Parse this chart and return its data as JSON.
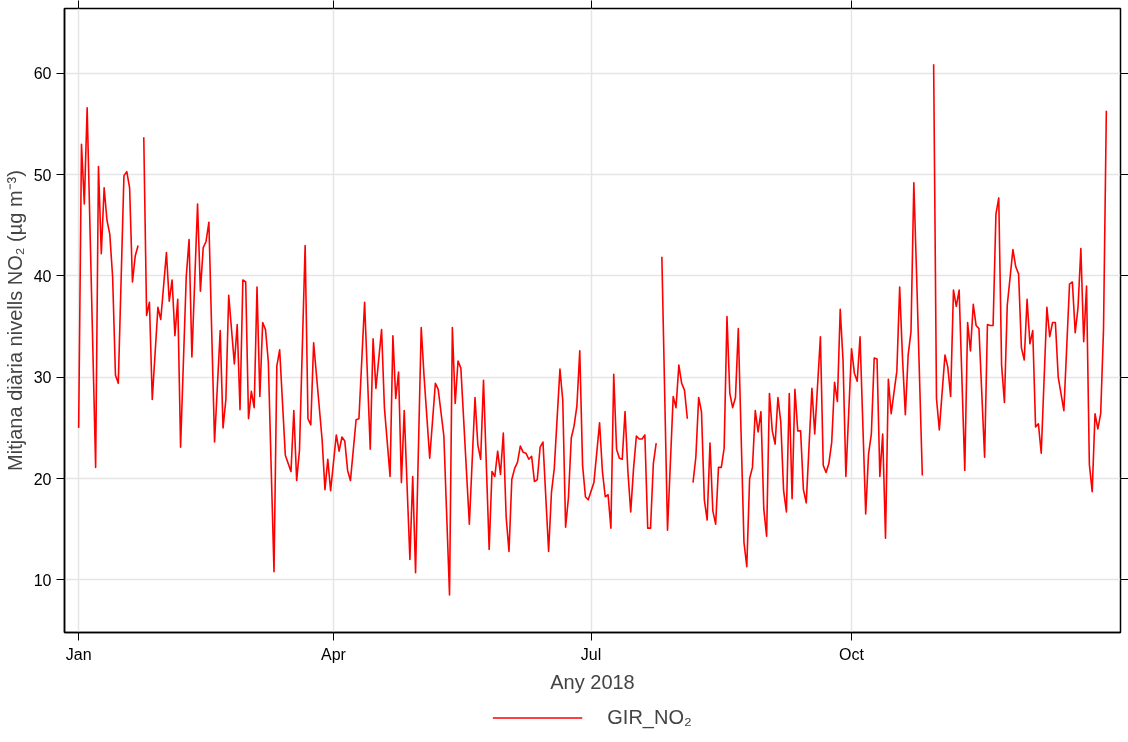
{
  "chart_data": {
    "type": "line",
    "xlabel": "Any 2018",
    "ylabel": "Mitjana diària nivells NO₂ (µg m⁻³)",
    "xlim": [
      "2017-12-27",
      "2019-01-04"
    ],
    "xticks": [
      {
        "value": "2018-01-01",
        "label": "Jan"
      },
      {
        "value": "2018-04-01",
        "label": "Apr"
      },
      {
        "value": "2018-07-01",
        "label": "Jul"
      },
      {
        "value": "2018-10-01",
        "label": "Oct"
      }
    ],
    "ylim": [
      4.8,
      66.4
    ],
    "yticks": [
      10,
      20,
      30,
      40,
      50,
      60
    ],
    "grid": true,
    "legend": "bottom",
    "line_style": "solid",
    "marker": "none",
    "series": [
      {
        "name": "GIR_NO₂",
        "color": "#ff0000",
        "x": [
          "2018-01-01",
          "2018-01-02",
          "2018-01-03",
          "2018-01-04",
          "2018-01-07",
          "2018-01-08",
          "2018-01-09",
          "2018-01-10",
          "2018-01-11",
          "2018-01-12",
          "2018-01-13",
          "2018-01-14",
          "2018-01-15",
          "2018-01-17",
          "2018-01-18",
          "2018-01-19",
          "2018-01-20",
          "2018-01-21",
          "2018-01-22",
          "2018-01-23",
          "2018-01-24",
          "2018-01-25",
          "2018-01-26",
          "2018-01-27",
          "2018-01-29",
          "2018-01-30",
          "2018-02-01",
          "2018-02-02",
          "2018-02-03",
          "2018-02-04",
          "2018-02-05",
          "2018-02-06",
          "2018-02-08",
          "2018-02-09",
          "2018-02-10",
          "2018-02-12",
          "2018-02-13",
          "2018-02-14",
          "2018-02-15",
          "2018-02-16",
          "2018-02-18",
          "2018-02-20",
          "2018-02-21",
          "2018-02-22",
          "2018-02-23",
          "2018-02-25",
          "2018-02-26",
          "2018-02-27",
          "2018-02-28",
          "2018-03-01",
          "2018-03-02",
          "2018-03-03",
          "2018-03-04",
          "2018-03-05",
          "2018-03-06",
          "2018-03-07",
          "2018-03-08",
          "2018-03-09",
          "2018-03-11",
          "2018-03-12",
          "2018-03-13",
          "2018-03-15",
          "2018-03-17",
          "2018-03-18",
          "2018-03-19",
          "2018-03-20",
          "2018-03-22",
          "2018-03-23",
          "2018-03-24",
          "2018-03-25",
          "2018-03-28",
          "2018-03-29",
          "2018-03-30",
          "2018-03-31",
          "2018-04-02",
          "2018-04-03",
          "2018-04-04",
          "2018-04-05",
          "2018-04-06",
          "2018-04-07",
          "2018-04-09",
          "2018-04-10",
          "2018-04-12",
          "2018-04-14",
          "2018-04-15",
          "2018-04-16",
          "2018-04-18",
          "2018-04-19",
          "2018-04-21",
          "2018-04-22",
          "2018-04-23",
          "2018-04-24",
          "2018-04-25",
          "2018-04-26",
          "2018-04-28",
          "2018-04-29",
          "2018-04-30",
          "2018-05-02",
          "2018-05-03",
          "2018-05-05",
          "2018-05-07",
          "2018-05-08",
          "2018-05-10",
          "2018-05-12",
          "2018-05-13",
          "2018-05-14",
          "2018-05-15",
          "2018-05-16",
          "2018-05-19",
          "2018-05-21",
          "2018-05-22",
          "2018-05-23",
          "2018-05-24",
          "2018-05-26",
          "2018-05-27",
          "2018-05-28",
          "2018-05-29",
          "2018-05-30",
          "2018-05-31",
          "2018-06-01",
          "2018-06-02",
          "2018-06-03",
          "2018-06-04",
          "2018-06-05",
          "2018-06-06",
          "2018-06-07",
          "2018-06-08",
          "2018-06-09",
          "2018-06-10",
          "2018-06-11",
          "2018-06-12",
          "2018-06-13",
          "2018-06-14",
          "2018-06-16",
          "2018-06-17",
          "2018-06-18",
          "2018-06-20",
          "2018-06-21",
          "2018-06-22",
          "2018-06-23",
          "2018-06-24",
          "2018-06-25",
          "2018-06-26",
          "2018-06-27",
          "2018-06-28",
          "2018-06-29",
          "2018-06-30",
          "2018-07-02",
          "2018-07-04",
          "2018-07-05",
          "2018-07-06",
          "2018-07-07",
          "2018-07-08",
          "2018-07-09",
          "2018-07-10",
          "2018-07-11",
          "2018-07-12",
          "2018-07-13",
          "2018-07-14",
          "2018-07-15",
          "2018-07-16",
          "2018-07-17",
          "2018-07-18",
          "2018-07-19",
          "2018-07-20",
          "2018-07-21",
          "2018-07-22",
          "2018-07-23",
          "2018-07-24",
          "2018-07-25",
          "2018-07-26",
          "2018-07-28",
          "2018-07-30",
          "2018-07-31",
          "2018-08-01",
          "2018-08-02",
          "2018-08-03",
          "2018-08-04",
          "2018-08-05",
          "2018-08-06",
          "2018-08-07",
          "2018-08-08",
          "2018-08-09",
          "2018-08-10",
          "2018-08-11",
          "2018-08-12",
          "2018-08-13",
          "2018-08-14",
          "2018-08-15",
          "2018-08-16",
          "2018-08-17",
          "2018-08-18",
          "2018-08-19",
          "2018-08-20",
          "2018-08-21",
          "2018-08-22",
          "2018-08-24",
          "2018-08-25",
          "2018-08-26",
          "2018-08-27",
          "2018-08-28",
          "2018-08-29",
          "2018-08-30",
          "2018-08-31",
          "2018-09-01",
          "2018-09-02",
          "2018-09-03",
          "2018-09-04",
          "2018-09-05",
          "2018-09-06",
          "2018-09-07",
          "2018-09-08",
          "2018-09-09",
          "2018-09-10",
          "2018-09-11",
          "2018-09-12",
          "2018-09-13",
          "2018-09-14",
          "2018-09-15",
          "2018-09-17",
          "2018-09-18",
          "2018-09-20",
          "2018-09-21",
          "2018-09-22",
          "2018-09-23",
          "2018-09-24",
          "2018-09-25",
          "2018-09-26",
          "2018-09-27",
          "2018-09-28",
          "2018-09-29",
          "2018-10-01",
          "2018-10-02",
          "2018-10-03",
          "2018-10-04",
          "2018-10-06",
          "2018-10-07",
          "2018-10-08",
          "2018-10-09",
          "2018-10-10",
          "2018-10-11",
          "2018-10-12",
          "2018-10-13",
          "2018-10-14",
          "2018-10-15",
          "2018-10-17",
          "2018-10-18",
          "2018-10-19",
          "2018-10-20",
          "2018-10-21",
          "2018-10-22",
          "2018-10-23",
          "2018-10-24",
          "2018-10-26",
          "2018-10-28",
          "2018-10-30",
          "2018-10-31",
          "2018-11-01",
          "2018-11-03",
          "2018-11-04",
          "2018-11-05",
          "2018-11-06",
          "2018-11-07",
          "2018-11-08",
          "2018-11-10",
          "2018-11-11",
          "2018-11-12",
          "2018-11-13",
          "2018-11-14",
          "2018-11-15",
          "2018-11-17",
          "2018-11-18",
          "2018-11-19",
          "2018-11-20",
          "2018-11-21",
          "2018-11-22",
          "2018-11-23",
          "2018-11-24",
          "2018-11-25",
          "2018-11-27",
          "2018-11-28",
          "2018-11-29",
          "2018-11-30",
          "2018-12-01",
          "2018-12-02",
          "2018-12-03",
          "2018-12-04",
          "2018-12-05",
          "2018-12-06",
          "2018-12-07",
          "2018-12-09",
          "2018-12-10",
          "2018-12-11",
          "2018-12-12",
          "2018-12-13",
          "2018-12-15",
          "2018-12-17",
          "2018-12-18",
          "2018-12-19",
          "2018-12-20",
          "2018-12-21",
          "2018-12-22",
          "2018-12-23",
          "2018-12-24",
          "2018-12-25",
          "2018-12-26",
          "2018-12-27",
          "2018-12-28",
          "2018-12-29",
          "2018-12-30"
        ],
        "values": [
          25.0,
          53.0,
          47.1,
          56.6,
          21.1,
          50.8,
          42.2,
          48.7,
          45.5,
          44.1,
          39.9,
          30.2,
          29.4,
          49.9,
          50.3,
          48.7,
          39.4,
          42.0,
          43.0,
          null,
          53.7,
          36.1,
          37.4,
          27.8,
          36.9,
          35.7,
          42.3,
          37.5,
          39.6,
          34.1,
          37.7,
          23.1,
          39.9,
          43.6,
          32.0,
          47.1,
          38.5,
          42.8,
          43.4,
          45.3,
          23.6,
          34.6,
          25.0,
          27.8,
          38.1,
          31.3,
          35.2,
          26.8,
          39.6,
          39.4,
          25.9,
          28.6,
          27.0,
          38.9,
          28.1,
          35.4,
          34.7,
          31.5,
          10.8,
          31.1,
          32.7,
          22.3,
          20.7,
          26.7,
          19.8,
          22.8,
          43.0,
          25.9,
          25.3,
          33.4,
          23.8,
          18.9,
          21.9,
          18.8,
          24.3,
          22.7,
          24.1,
          23.7,
          20.8,
          19.8,
          25.8,
          25.9,
          37.4,
          22.9,
          33.8,
          28.9,
          34.7,
          27.0,
          20.2,
          34.1,
          27.9,
          30.5,
          19.6,
          26.7,
          12.0,
          20.2,
          10.7,
          34.9,
          30.1,
          22.0,
          29.4,
          28.8,
          24.2,
          8.5,
          34.9,
          27.4,
          31.6,
          30.9,
          15.5,
          28.0,
          23.3,
          21.9,
          29.7,
          13.0,
          20.7,
          20.2,
          22.7,
          20.4,
          24.5,
          16.2,
          12.8,
          19.9,
          21.0,
          21.6,
          23.2,
          22.6,
          22.5,
          21.9,
          22.2,
          19.7,
          19.9,
          23.1,
          23.6,
          12.8,
          18.6,
          21.0,
          30.8,
          27.7,
          15.2,
          18.1,
          24.0,
          25.2,
          27.2,
          32.6,
          21.3,
          18.2,
          17.9,
          19.6,
          25.5,
          20.7,
          18.2,
          18.4,
          15.1,
          30.3,
          22.9,
          22.0,
          21.9,
          26.6,
          20.7,
          16.7,
          21.0,
          24.2,
          23.9,
          23.9,
          24.3,
          15.1,
          15.1,
          21.5,
          23.5,
          null,
          41.9,
          14.9,
          28.1,
          27.0,
          31.2,
          29.4,
          28.7,
          25.9,
          null,
          19.6,
          22.1,
          28.0,
          26.6,
          17.9,
          15.9,
          23.5,
          16.8,
          15.5,
          21.1,
          21.1,
          23.0,
          36.0,
          28.4,
          27.0,
          28.0,
          34.8,
          13.7,
          11.3,
          20.0,
          21.1,
          26.7,
          24.6,
          26.6,
          17.0,
          14.3,
          28.4,
          24.7,
          23.4,
          28.0,
          25.6,
          18.8,
          16.7,
          28.4,
          18.0,
          28.8,
          24.7,
          24.7,
          18.9,
          17.6,
          28.9,
          24.4,
          34.0,
          21.3,
          20.6,
          21.5,
          23.6,
          29.5,
          27.6,
          36.7,
          31.6,
          20.2,
          32.8,
          30.4,
          29.6,
          34.0,
          16.5,
          22.4,
          24.4,
          31.9,
          31.8,
          20.2,
          24.4,
          14.1,
          29.8,
          26.4,
          30.6,
          38.9,
          31.9,
          26.3,
          32.2,
          34.5,
          49.2,
          39.9,
          20.3,
          null,
          60.9,
          27.9,
          24.8,
          32.2,
          31.0,
          28.1,
          38.6,
          37.0,
          38.6,
          20.8,
          35.4,
          32.6,
          37.2,
          35.1,
          34.8,
          22.1,
          35.2,
          35.1,
          35.1,
          46.1,
          47.7,
          31.2,
          27.5,
          37.1,
          42.6,
          40.9,
          40.2,
          32.9,
          31.7,
          37.7,
          33.3,
          34.6,
          25.1,
          25.4,
          22.5,
          36.9,
          34.0,
          35.4,
          35.4,
          30.0,
          26.7,
          39.2,
          39.4,
          34.4,
          36.9,
          42.7,
          33.5,
          39.0,
          21.4,
          18.7,
          26.4,
          24.9,
          26.4,
          34.7,
          56.3
        ]
      }
    ]
  }
}
